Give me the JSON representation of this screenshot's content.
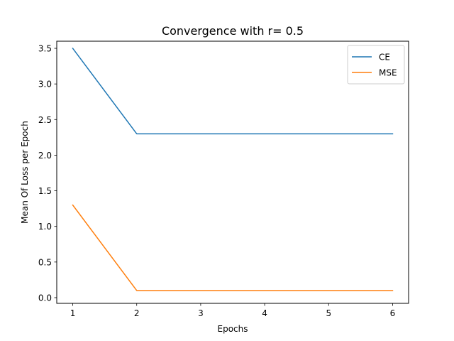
{
  "chart_data": {
    "type": "line",
    "title": "Convergence with  r= 0.5",
    "xlabel": "Epochs",
    "ylabel": "Mean Of Loss per Epoch",
    "x": [
      1,
      2,
      3,
      4,
      5,
      6
    ],
    "xticks": [
      1,
      2,
      3,
      4,
      5,
      6
    ],
    "xlim": [
      0.75,
      6.25
    ],
    "yticks": [
      0.0,
      0.5,
      1.0,
      1.5,
      2.0,
      2.5,
      3.0,
      3.5
    ],
    "ytick_labels": [
      "0.0",
      "0.5",
      "1.0",
      "1.5",
      "2.0",
      "2.5",
      "3.0",
      "3.5"
    ],
    "ylim": [
      -0.08,
      3.6
    ],
    "grid": false,
    "legend_position": "top-right",
    "series": [
      {
        "name": "CE",
        "color": "#1f77b4",
        "values": [
          3.5,
          2.3,
          2.3,
          2.3,
          2.3,
          2.3
        ]
      },
      {
        "name": "MSE",
        "color": "#ff7f0e",
        "values": [
          1.3,
          0.1,
          0.1,
          0.1,
          0.1,
          0.1
        ]
      }
    ]
  }
}
